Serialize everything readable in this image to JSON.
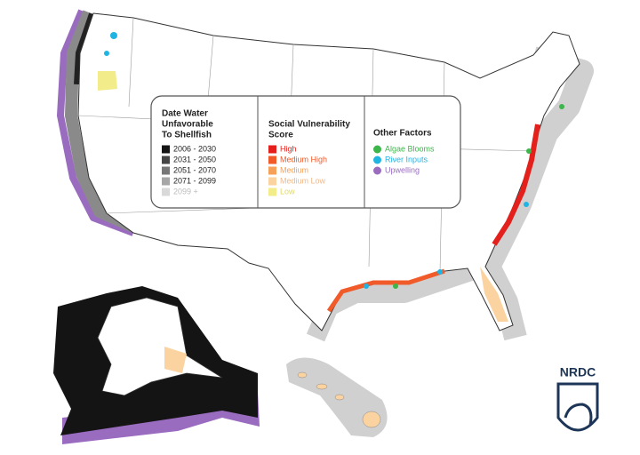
{
  "legend": {
    "sections": [
      {
        "title_lines": [
          "Date Water",
          "Unfavorable",
          "To Shellfish"
        ],
        "shape": "square",
        "items": [
          {
            "label": "2006 - 2030",
            "color": "#141414",
            "text_color": "#222222"
          },
          {
            "label": "2031 - 2050",
            "color": "#454545",
            "text_color": "#222222"
          },
          {
            "label": "2051 - 2070",
            "color": "#777777",
            "text_color": "#222222"
          },
          {
            "label": "2071 - 2099",
            "color": "#a6a6a6",
            "text_color": "#222222"
          },
          {
            "label": "2099 +",
            "color": "#d9d9d9",
            "text_color": "#bbbbbb"
          }
        ]
      },
      {
        "title_lines": [
          "Social Vulnerability",
          "Score"
        ],
        "shape": "square",
        "items": [
          {
            "label": "High",
            "color": "#e3201b",
            "text_color": "#e3201b"
          },
          {
            "label": "Medium High",
            "color": "#f15a29",
            "text_color": "#f15a29"
          },
          {
            "label": "Medium",
            "color": "#f6a15a",
            "text_color": "#f6a15a"
          },
          {
            "label": "Medium Low",
            "color": "#fbd3a1",
            "text_color": "#f2b98a"
          },
          {
            "label": "Low",
            "color": "#f3ec8a",
            "text_color": "#e3d964"
          }
        ]
      },
      {
        "title_lines": [
          "Other Factors"
        ],
        "shape": "circle",
        "items": [
          {
            "label": "Algae Blooms",
            "color": "#3cb64a",
            "text_color": "#3cb64a"
          },
          {
            "label": "River Inputs",
            "color": "#20b4e2",
            "text_color": "#20b4e2"
          },
          {
            "label": "Upwelling",
            "color": "#9a6cc0",
            "text_color": "#9a6cc0"
          }
        ]
      }
    ]
  },
  "logo": {
    "text": "NRDC"
  }
}
